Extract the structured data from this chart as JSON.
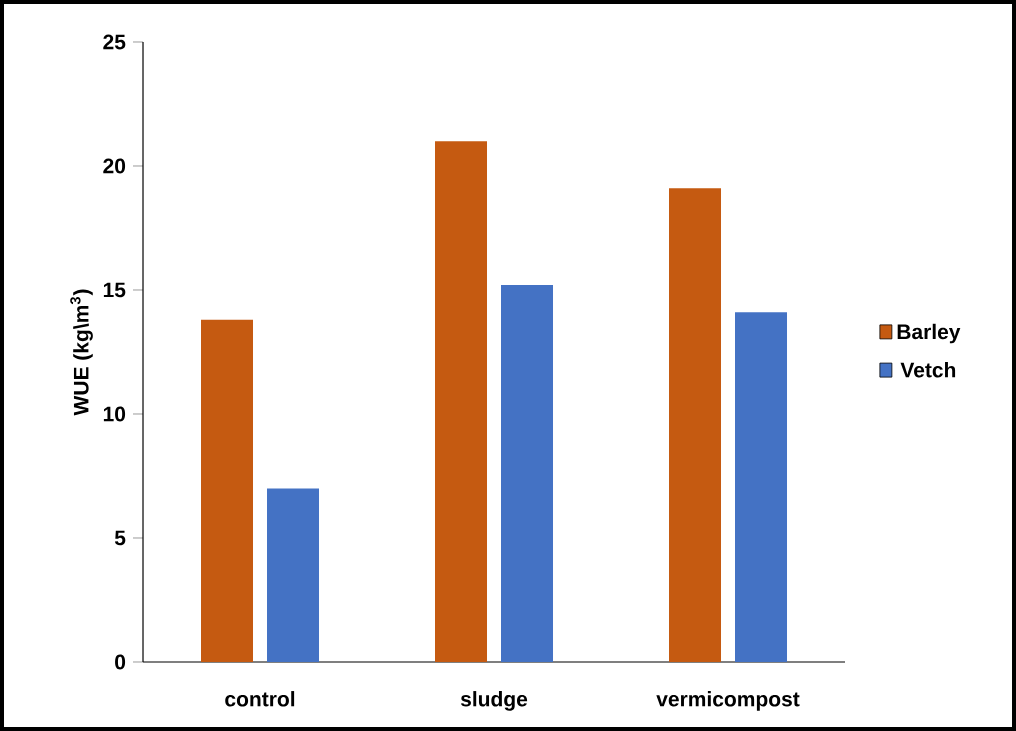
{
  "chart_data": {
    "type": "bar",
    "categories": [
      "control",
      "sludge",
      "vermicompost"
    ],
    "series": [
      {
        "name": "Barley",
        "color": "#c55a11",
        "values": [
          13.8,
          21.0,
          19.1
        ]
      },
      {
        "name": "Vetch",
        "color": "#4472c4",
        "values": [
          7.0,
          15.2,
          14.1
        ]
      }
    ],
    "ylabel": "WUE (kg\\m$^{3}$)",
    "ylim": [
      0,
      25
    ],
    "yticks": [
      0,
      5,
      10,
      15,
      20,
      25
    ],
    "legend": "right"
  }
}
